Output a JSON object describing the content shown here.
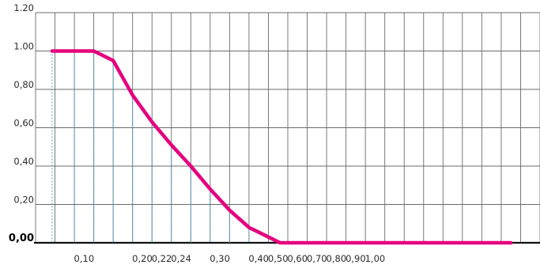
{
  "chart_data": {
    "type": "line",
    "title": "",
    "xlabel": "",
    "ylabel": "",
    "ylim": [
      0,
      1.2
    ],
    "grid": true,
    "y_ticks": [
      "0,00",
      "0,20",
      "0,40",
      "0,60",
      "0,80",
      "1.00",
      "1.20"
    ],
    "x_tick_labels": [
      "0,10",
      "0,20",
      "0,22",
      "0,24",
      "0,30",
      "0,40",
      "0,50",
      "0,60",
      "0,70",
      "0,80",
      "0,90",
      "1,00"
    ],
    "series": [
      {
        "color": "#e5007e",
        "points": [
          {
            "x": 0.08,
            "y": 1.0
          },
          {
            "x": 0.1,
            "y": 1.0
          },
          {
            "x": 0.12,
            "y": 1.0
          },
          {
            "x": 0.14,
            "y": 0.95
          },
          {
            "x": 0.16,
            "y": 0.77
          },
          {
            "x": 0.18,
            "y": 0.63
          },
          {
            "x": 0.2,
            "y": 0.51
          },
          {
            "x": 0.21,
            "y": 0.4
          },
          {
            "x": 0.22,
            "y": 0.28
          },
          {
            "x": 0.23,
            "y": 0.17
          },
          {
            "x": 0.24,
            "y": 0.08
          },
          {
            "x": 0.26,
            "y": 0.03
          },
          {
            "x": 0.28,
            "y": 0.0
          },
          {
            "x": 0.3,
            "y": 0.0
          },
          {
            "x": 0.4,
            "y": 0.0
          },
          {
            "x": 0.5,
            "y": 0.0
          },
          {
            "x": 0.6,
            "y": 0.0
          },
          {
            "x": 0.7,
            "y": 0.0
          },
          {
            "x": 0.8,
            "y": 0.0
          },
          {
            "x": 0.9,
            "y": 0.0
          },
          {
            "x": 1.0,
            "y": 0.0
          }
        ]
      }
    ]
  }
}
